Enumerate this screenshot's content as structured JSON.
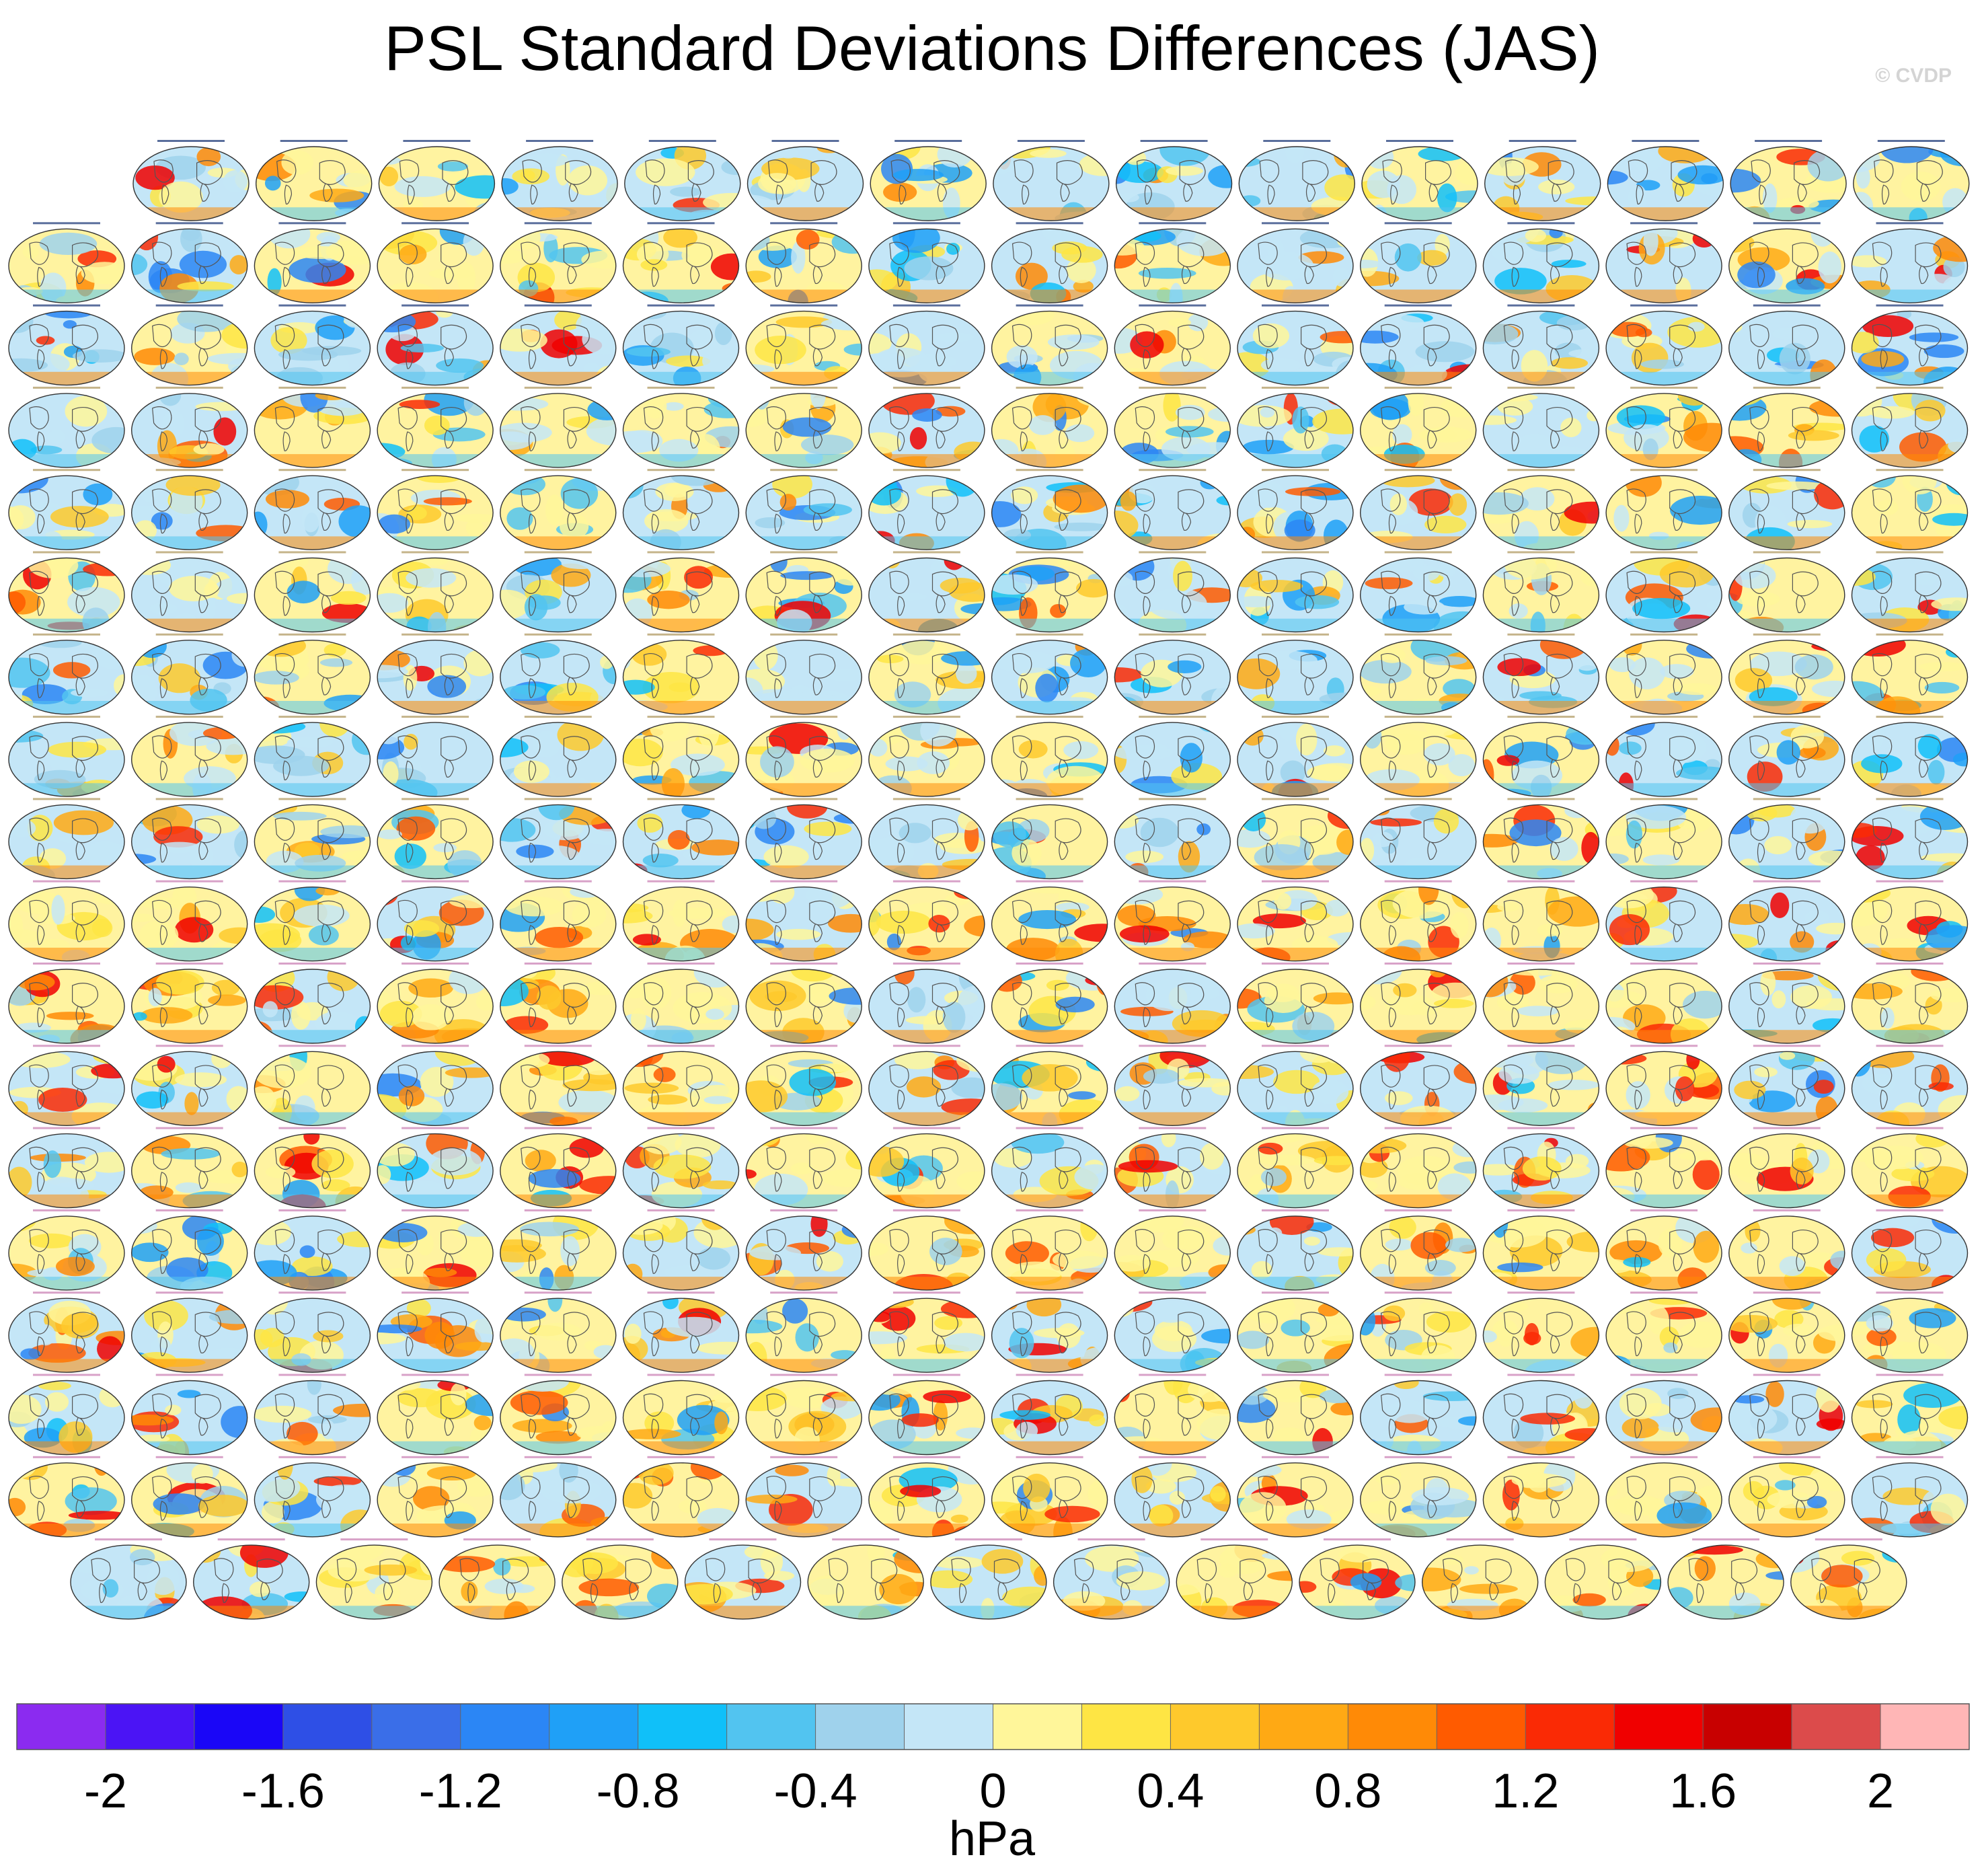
{
  "title": "PSL Standard Deviations Differences (JAS)",
  "watermark": "© CVDP",
  "chart_data": {
    "type": "heatmap",
    "title": "PSL Standard Deviations Differences (JAS)",
    "panel_type": "global map grid",
    "panel_rows": [
      15,
      16,
      16,
      16,
      16,
      16,
      16,
      16,
      16,
      16,
      16,
      16,
      16,
      16,
      16,
      16,
      16,
      15
    ],
    "colorbar": {
      "unit": "hPa",
      "boundaries": [
        -2.2,
        -2.0,
        -1.8,
        -1.6,
        -1.4,
        -1.2,
        -1.0,
        -0.8,
        -0.6,
        -0.4,
        -0.2,
        0,
        0.2,
        0.4,
        0.6,
        0.8,
        1.0,
        1.2,
        1.4,
        1.6,
        1.8,
        2.0,
        2.2
      ],
      "tick_labels": [
        "-2",
        "-1.6",
        "-1.2",
        "-0.8",
        "-0.4",
        "0",
        "0.4",
        "0.8",
        "1.2",
        "1.6",
        "2"
      ],
      "tick_values": [
        -2,
        -1.6,
        -1.2,
        -0.8,
        -0.4,
        0,
        0.4,
        0.8,
        1.2,
        1.6,
        2
      ],
      "colors": [
        "#8b2bf0",
        "#4b14f5",
        "#1a06f7",
        "#2e4fe6",
        "#3a6ee8",
        "#2b86f5",
        "#1fa0f7",
        "#10c0f9",
        "#52c4f0",
        "#9fd2ec",
        "#c4e6f7",
        "#fff69a",
        "#fee544",
        "#fec92c",
        "#ffa914",
        "#ff8a06",
        "#ff5b00",
        "#fa2a05",
        "#f00000",
        "#c80000",
        "#dc4b4b",
        "#ffb6b6"
      ]
    }
  }
}
